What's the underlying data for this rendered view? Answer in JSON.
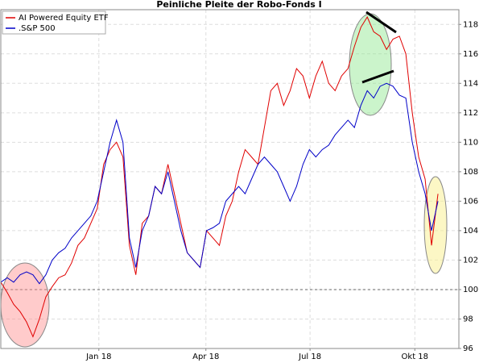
{
  "chart_data": {
    "type": "line",
    "title": "Peinliche Pleite der Robo-Fonds I",
    "x": [
      0,
      1,
      2,
      3,
      4,
      5,
      6,
      7,
      8,
      9,
      10,
      11,
      12,
      13,
      14,
      15,
      16,
      17,
      18,
      19,
      20,
      21,
      22,
      23,
      24,
      25,
      26,
      27,
      28,
      29,
      30,
      31,
      32,
      33,
      34,
      35,
      36,
      37,
      38,
      39,
      40,
      41,
      42,
      43,
      44,
      45,
      46,
      47,
      48,
      49,
      50,
      51,
      52,
      53,
      54,
      55,
      56,
      57,
      58,
      59,
      60,
      61,
      62,
      63,
      64,
      65,
      66,
      67,
      68
    ],
    "series": [
      {
        "name": "AI Powered Equity ETF",
        "color": "#e00000",
        "values": [
          100.5,
          99.8,
          99.0,
          98.5,
          97.8,
          96.8,
          98.0,
          99.5,
          100.2,
          100.8,
          101.0,
          101.8,
          103.0,
          103.5,
          104.5,
          105.5,
          108.5,
          109.5,
          110.0,
          109.0,
          103.0,
          101.0,
          104.5,
          105.0,
          107.0,
          106.5,
          108.5,
          106.5,
          104.5,
          102.5,
          102.0,
          101.5,
          104.0,
          103.5,
          103.0,
          105.0,
          106.0,
          108.0,
          109.5,
          109.0,
          108.5,
          111.0,
          113.5,
          114.0,
          112.5,
          113.5,
          115.0,
          114.5,
          113.0,
          114.5,
          115.5,
          114.0,
          113.5,
          114.5,
          115.0,
          116.5,
          117.8,
          118.5,
          117.5,
          117.2,
          116.3,
          117.0,
          117.2,
          116.0,
          112.0,
          109.0,
          107.5,
          103.0,
          106.5
        ]
      },
      {
        "name": ".S&P 500",
        "color": "#0000c8",
        "values": [
          100.5,
          100.8,
          100.5,
          101.0,
          101.2,
          101.0,
          100.4,
          101.0,
          102.0,
          102.5,
          102.8,
          103.5,
          104.0,
          104.5,
          105.0,
          106.0,
          108.0,
          110.0,
          111.5,
          110.0,
          103.5,
          101.5,
          104.0,
          105.0,
          107.0,
          106.5,
          108.0,
          106.0,
          104.0,
          102.5,
          102.0,
          101.5,
          104.0,
          104.2,
          104.5,
          106.0,
          106.5,
          107.0,
          106.5,
          107.5,
          108.5,
          109.0,
          108.5,
          108.0,
          107.0,
          106.0,
          107.0,
          108.5,
          109.5,
          109.0,
          109.5,
          109.8,
          110.5,
          111.0,
          111.5,
          111.0,
          112.5,
          113.5,
          113.0,
          113.8,
          114.0,
          113.8,
          113.2,
          113.0,
          110.0,
          108.0,
          106.5,
          104.0,
          106.0
        ]
      }
    ],
    "xlim": [
      0,
      71.25
    ],
    "xticks": [
      {
        "value": 15.25,
        "label": "Jan 18"
      },
      {
        "value": 31.9,
        "label": "Apr 18"
      },
      {
        "value": 48.1,
        "label": "Jul 18"
      },
      {
        "value": 64.4,
        "label": "Okt 18"
      }
    ],
    "ylim": [
      96,
      119
    ],
    "yticks": [
      96,
      98,
      100,
      102,
      104,
      106,
      108,
      110,
      112,
      114,
      116,
      118
    ],
    "reference_line": 100,
    "grid": true,
    "legend": "top-left"
  }
}
